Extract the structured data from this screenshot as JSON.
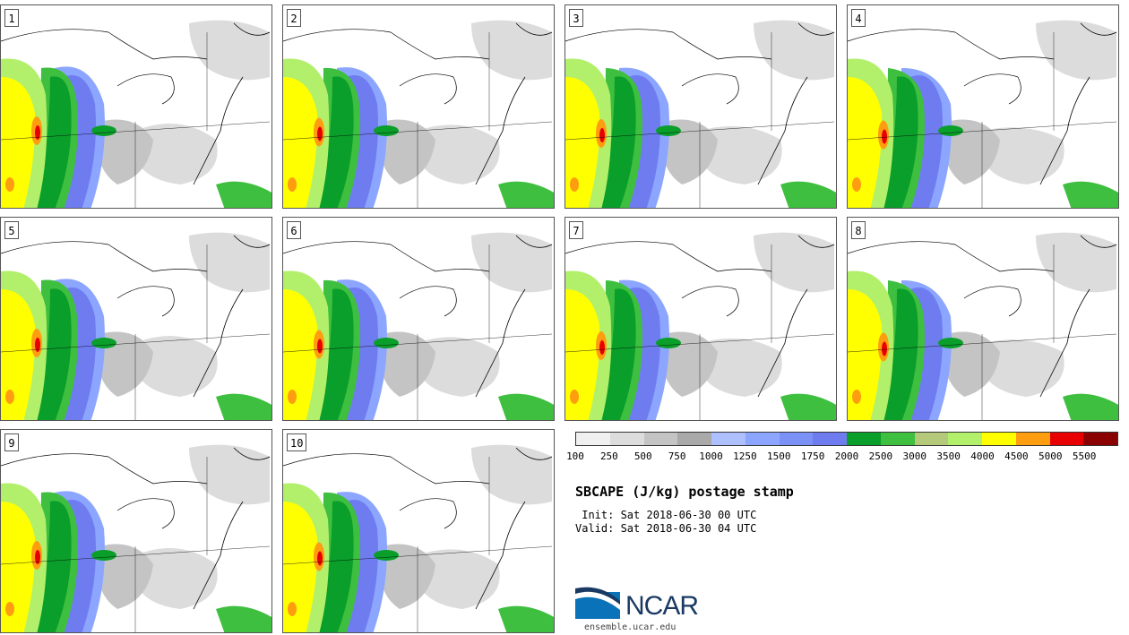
{
  "panels": [
    {
      "label": "1"
    },
    {
      "label": "2"
    },
    {
      "label": "3"
    },
    {
      "label": "4"
    },
    {
      "label": "5"
    },
    {
      "label": "6"
    },
    {
      "label": "7"
    },
    {
      "label": "8"
    },
    {
      "label": "9"
    },
    {
      "label": "10"
    }
  ],
  "colorbar": {
    "ticks": [
      "100",
      "250",
      "500",
      "750",
      "1000",
      "1250",
      "1500",
      "1750",
      "2000",
      "2500",
      "3000",
      "3500",
      "4000",
      "4500",
      "5000",
      "5500"
    ],
    "colors": [
      "#f0f0f0",
      "#dcdcdc",
      "#c4c4c4",
      "#a9a9a9",
      "#aebfff",
      "#8ca6ff",
      "#7c91f5",
      "#6f7cf0",
      "#0a9e2a",
      "#3fbf3f",
      "#b5c97a",
      "#b2f06b",
      "#ffff00",
      "#ff9d10",
      "#e80000",
      "#8b0000"
    ]
  },
  "title": "SBCAPE (J/kg) postage stamp",
  "init_line": " Init: Sat 2018-06-30 00 UTC",
  "valid_line": "Valid: Sat 2018-06-30 04 UTC",
  "logo": {
    "text": "NCAR",
    "url": "ensemble.ucar.edu",
    "brand_color": "#1b3a63",
    "accent_color": "#0a72b8"
  }
}
